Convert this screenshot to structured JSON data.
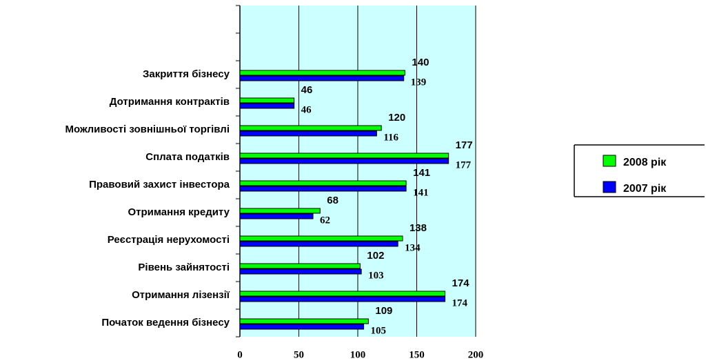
{
  "chart_data": {
    "type": "bar",
    "orientation": "horizontal",
    "categories": [
      null,
      null,
      "Закриття бізнесу",
      "Дотримання контрактів",
      "Можливості зовнішньої торгівлі",
      "Сплата податків",
      "Правовий захист інвестора",
      "Отримання кредиту",
      "Реєстрація нерухомості",
      "Рівень зайнятості",
      "Отримання лізензії",
      "Початок ведення бізнесу"
    ],
    "series": [
      {
        "name": "2008 рік",
        "color": "#00ff00",
        "values": [
          null,
          null,
          140,
          46,
          120,
          177,
          141,
          68,
          138,
          102,
          174,
          109
        ]
      },
      {
        "name": "2007 рік",
        "color": "#0000ff",
        "values": [
          null,
          null,
          139,
          46,
          116,
          177,
          141,
          62,
          134,
          103,
          174,
          105
        ]
      }
    ],
    "xlim": [
      0,
      200
    ],
    "xticks": [
      0,
      50,
      100,
      150,
      200
    ],
    "grid": true,
    "legend": "right",
    "background": "#ccffff"
  }
}
